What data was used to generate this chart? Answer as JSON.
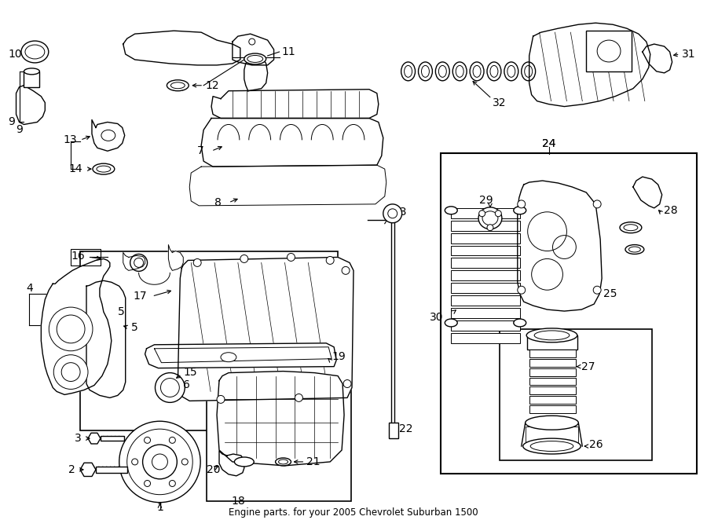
{
  "title": "Engine parts. for your 2005 Chevrolet Suburban 1500",
  "bg_color": "#ffffff",
  "lc": "#000000",
  "fig_w": 9.0,
  "fig_h": 6.62,
  "dpi": 100,
  "label_fs": 10,
  "small_fs": 8
}
